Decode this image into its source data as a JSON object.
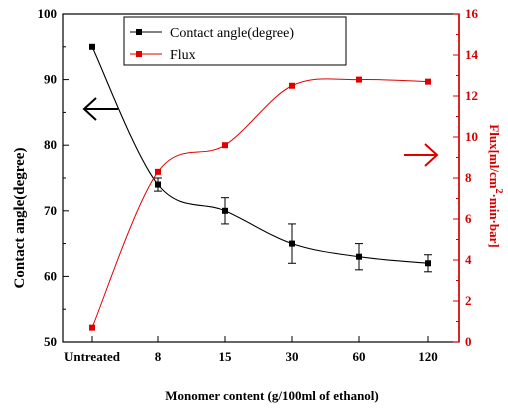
{
  "chart_data": {
    "type": "line",
    "title": "",
    "xlabel": "Monomer content (g/100ml of ethanol)",
    "categories": [
      "Untreated",
      "8",
      "15",
      "30",
      "60",
      "120"
    ],
    "ylabel_left": "Contact angle(degree)",
    "ylabel_right": {
      "main": "Flux[ml/cm",
      "sup": "2",
      "rest": "·min·bar]"
    },
    "ylim_left": [
      50,
      100
    ],
    "yticks_left": [
      50,
      60,
      70,
      80,
      90,
      100
    ],
    "ylim_right": [
      0,
      16
    ],
    "yticks_right": [
      0,
      2,
      4,
      6,
      8,
      10,
      12,
      14,
      16
    ],
    "grid": false,
    "legend_position": "top-center",
    "series": [
      {
        "name": "Contact angle(degree)",
        "axis": "left",
        "color": "#000000",
        "values": [
          95,
          74,
          70,
          65,
          63,
          62
        ],
        "errors": [
          0,
          1,
          2,
          3,
          2,
          1.3
        ]
      },
      {
        "name": "Flux",
        "axis": "right",
        "color": "#e00000",
        "values": [
          0.7,
          8.3,
          9.6,
          12.5,
          12.8,
          12.7
        ]
      }
    ],
    "arrows": [
      {
        "direction": "left",
        "color": "#000000"
      },
      {
        "direction": "right",
        "color": "#e00000"
      }
    ]
  }
}
